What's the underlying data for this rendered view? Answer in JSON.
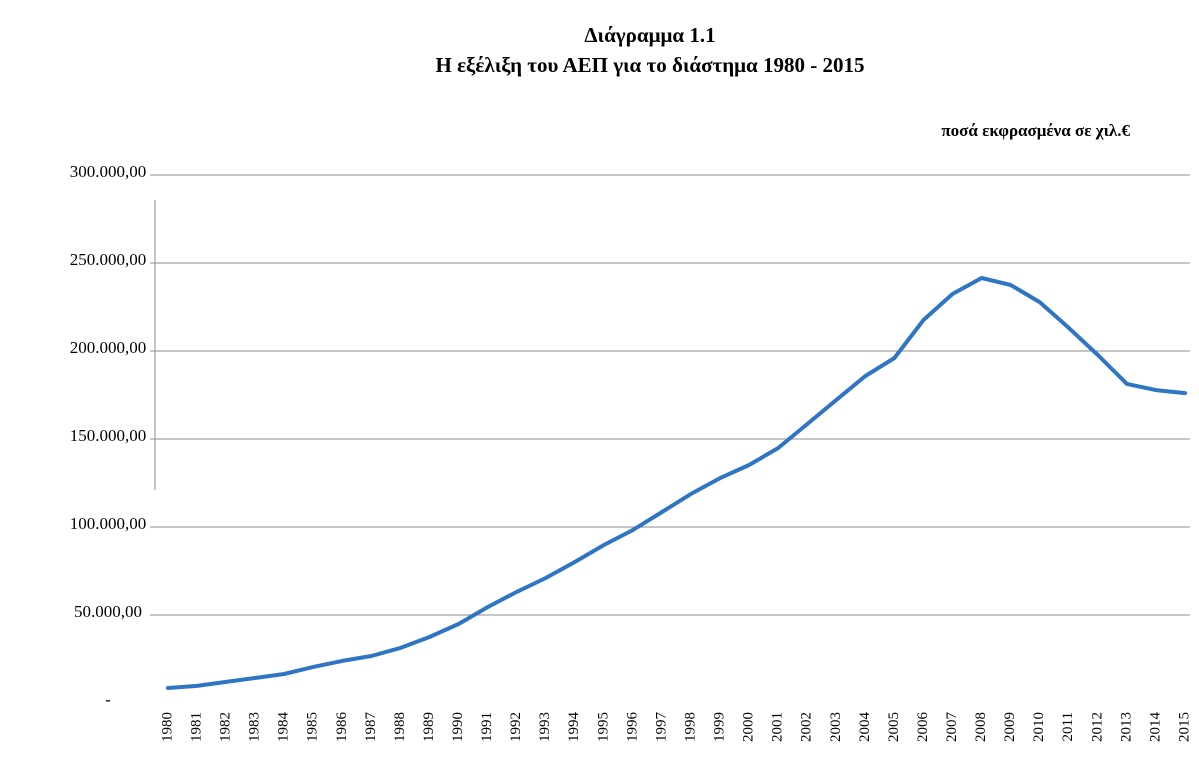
{
  "chart_data": {
    "type": "line",
    "title": "Διάγραμμα 1.1",
    "subtitle": "Η εξέλιξη του ΑΕΠ για το διάστημα 1980 - 2015",
    "annotation": "ποσά εκφρασμένα σε χιλ.€",
    "categories": [
      "1980",
      "1981",
      "1982",
      "1983",
      "1984",
      "1985",
      "1986",
      "1987",
      "1988",
      "1989",
      "1990",
      "1991",
      "1992",
      "1993",
      "1994",
      "1995",
      "1996",
      "1997",
      "1998",
      "1999",
      "2000",
      "2001",
      "2002",
      "2003",
      "2004",
      "2005",
      "2006",
      "2007",
      "2008",
      "2009",
      "2010",
      "2011",
      "2012",
      "2013",
      "2014",
      "2015"
    ],
    "series": [
      {
        "color": "#2e75c4",
        "values": [
          8500,
          9700,
          12000,
          14200,
          16500,
          20500,
          23900,
          26700,
          31300,
          37500,
          44900,
          54500,
          63100,
          71000,
          80100,
          89800,
          98300,
          108500,
          118800,
          127800,
          135200,
          144900,
          158500,
          172200,
          185800,
          196000,
          217600,
          232400,
          241500,
          237500,
          227800,
          213100,
          197700,
          181300,
          177800,
          176100
        ]
      }
    ],
    "ylim": [
      0,
      300000
    ],
    "yticks": [
      {
        "value": 0,
        "label": "-"
      },
      {
        "value": 50000,
        "label": "50.000,00"
      },
      {
        "value": 100000,
        "label": "100.000,00"
      },
      {
        "value": 150000,
        "label": "150.000,00"
      },
      {
        "value": 200000,
        "label": "200.000,00"
      },
      {
        "value": 250000,
        "label": "250.000,00"
      },
      {
        "value": 300000,
        "label": "300.000,00"
      }
    ],
    "grid": true
  }
}
